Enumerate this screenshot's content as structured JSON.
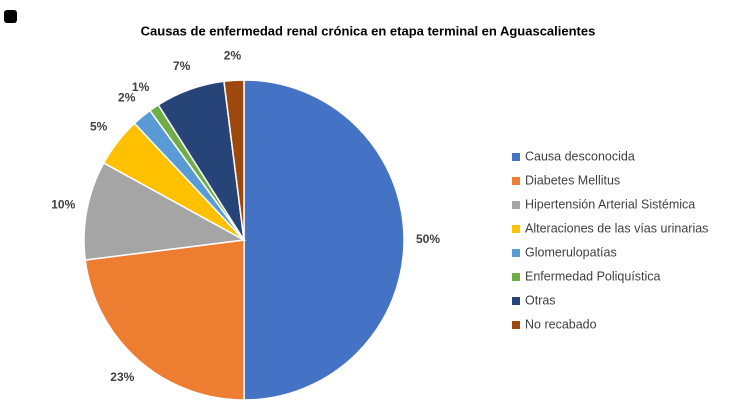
{
  "chart_data": {
    "type": "pie",
    "title": "Causas de enfermedad renal crónica en etapa terminal en Aguascalientes",
    "categories": [
      "Causa desconocida",
      "Diabetes Mellitus",
      "Hipertensión Arterial Sistémica",
      "Alteraciones de las vías urinarias",
      "Glomerulopatías",
      "Enfermedad  Poliquística",
      "Otras",
      "No recabado"
    ],
    "values": [
      50,
      23,
      10,
      5,
      2,
      1,
      7,
      2
    ],
    "value_labels": [
      "50%",
      "23%",
      "10%",
      "5%",
      "2%",
      "1%",
      "7%",
      "2%"
    ],
    "colors": [
      "#4472c4",
      "#ed7d31",
      "#a5a5a5",
      "#ffc000",
      "#5b9bd5",
      "#70ad47",
      "#264478",
      "#9e480e"
    ],
    "legend": "right"
  }
}
